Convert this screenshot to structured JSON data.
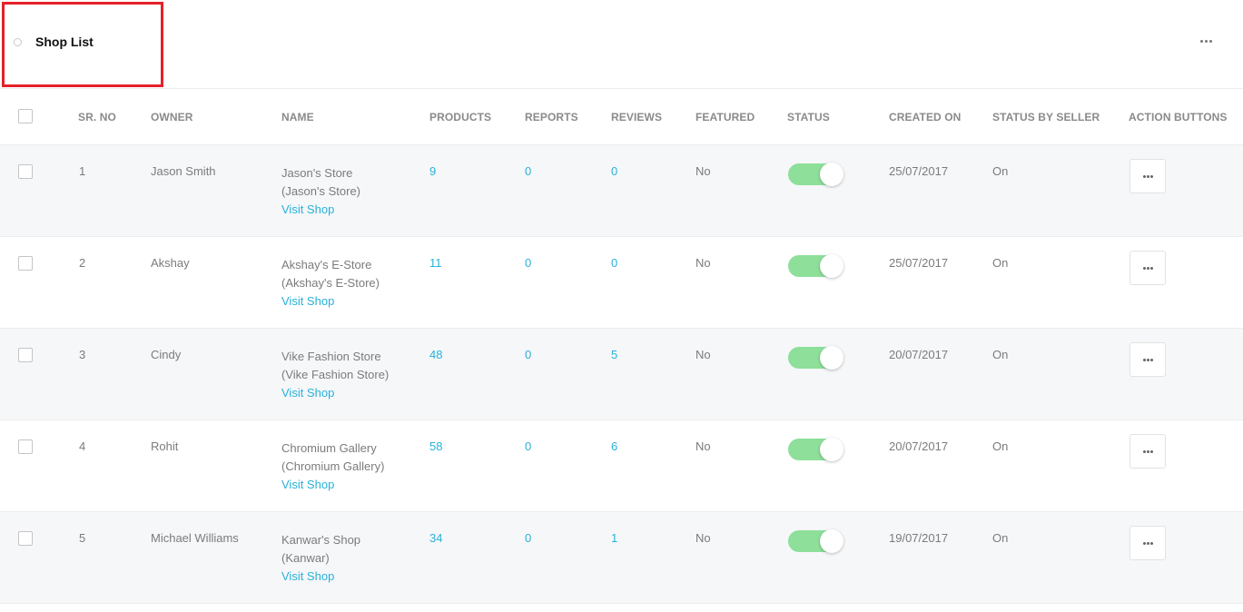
{
  "header": {
    "title": "Shop List",
    "more_icon": "more-horizontal-icon"
  },
  "table": {
    "columns": [
      "SR. NO",
      "OWNER",
      "NAME",
      "PRODUCTS",
      "REPORTS",
      "REVIEWS",
      "FEATURED",
      "STATUS",
      "CREATED ON",
      "STATUS BY SELLER",
      "ACTION BUTTONS"
    ],
    "rows": [
      {
        "sr": "1",
        "owner": "Jason Smith",
        "name": "Jason's Store",
        "name_sub": "(Jason's Store)",
        "visit": "Visit Shop",
        "products": "9",
        "reports": "0",
        "reviews": "0",
        "featured": "No",
        "status_on": true,
        "created": "25/07/2017",
        "seller_status": "On"
      },
      {
        "sr": "2",
        "owner": "Akshay",
        "name": "Akshay's E-Store",
        "name_sub": "(Akshay's E-Store)",
        "visit": "Visit Shop",
        "products": "11",
        "reports": "0",
        "reviews": "0",
        "featured": "No",
        "status_on": true,
        "created": "25/07/2017",
        "seller_status": "On"
      },
      {
        "sr": "3",
        "owner": "Cindy",
        "name": "Vike Fashion Store",
        "name_sub": "(Vike Fashion Store)",
        "visit": "Visit Shop",
        "products": "48",
        "reports": "0",
        "reviews": "5",
        "featured": "No",
        "status_on": true,
        "created": "20/07/2017",
        "seller_status": "On"
      },
      {
        "sr": "4",
        "owner": "Rohit",
        "name": "Chromium Gallery",
        "name_sub": "(Chromium Gallery)",
        "visit": "Visit Shop",
        "products": "58",
        "reports": "0",
        "reviews": "6",
        "featured": "No",
        "status_on": true,
        "created": "20/07/2017",
        "seller_status": "On"
      },
      {
        "sr": "5",
        "owner": "Michael Williams",
        "name": "Kanwar's Shop",
        "name_sub": "(Kanwar)",
        "visit": "Visit Shop",
        "products": "34",
        "reports": "0",
        "reviews": "1",
        "featured": "No",
        "status_on": true,
        "created": "19/07/2017",
        "seller_status": "On"
      }
    ]
  },
  "colors": {
    "accent": "#28b1d8",
    "toggle_on": "#8ddf9a",
    "highlight": "#e3212a"
  }
}
